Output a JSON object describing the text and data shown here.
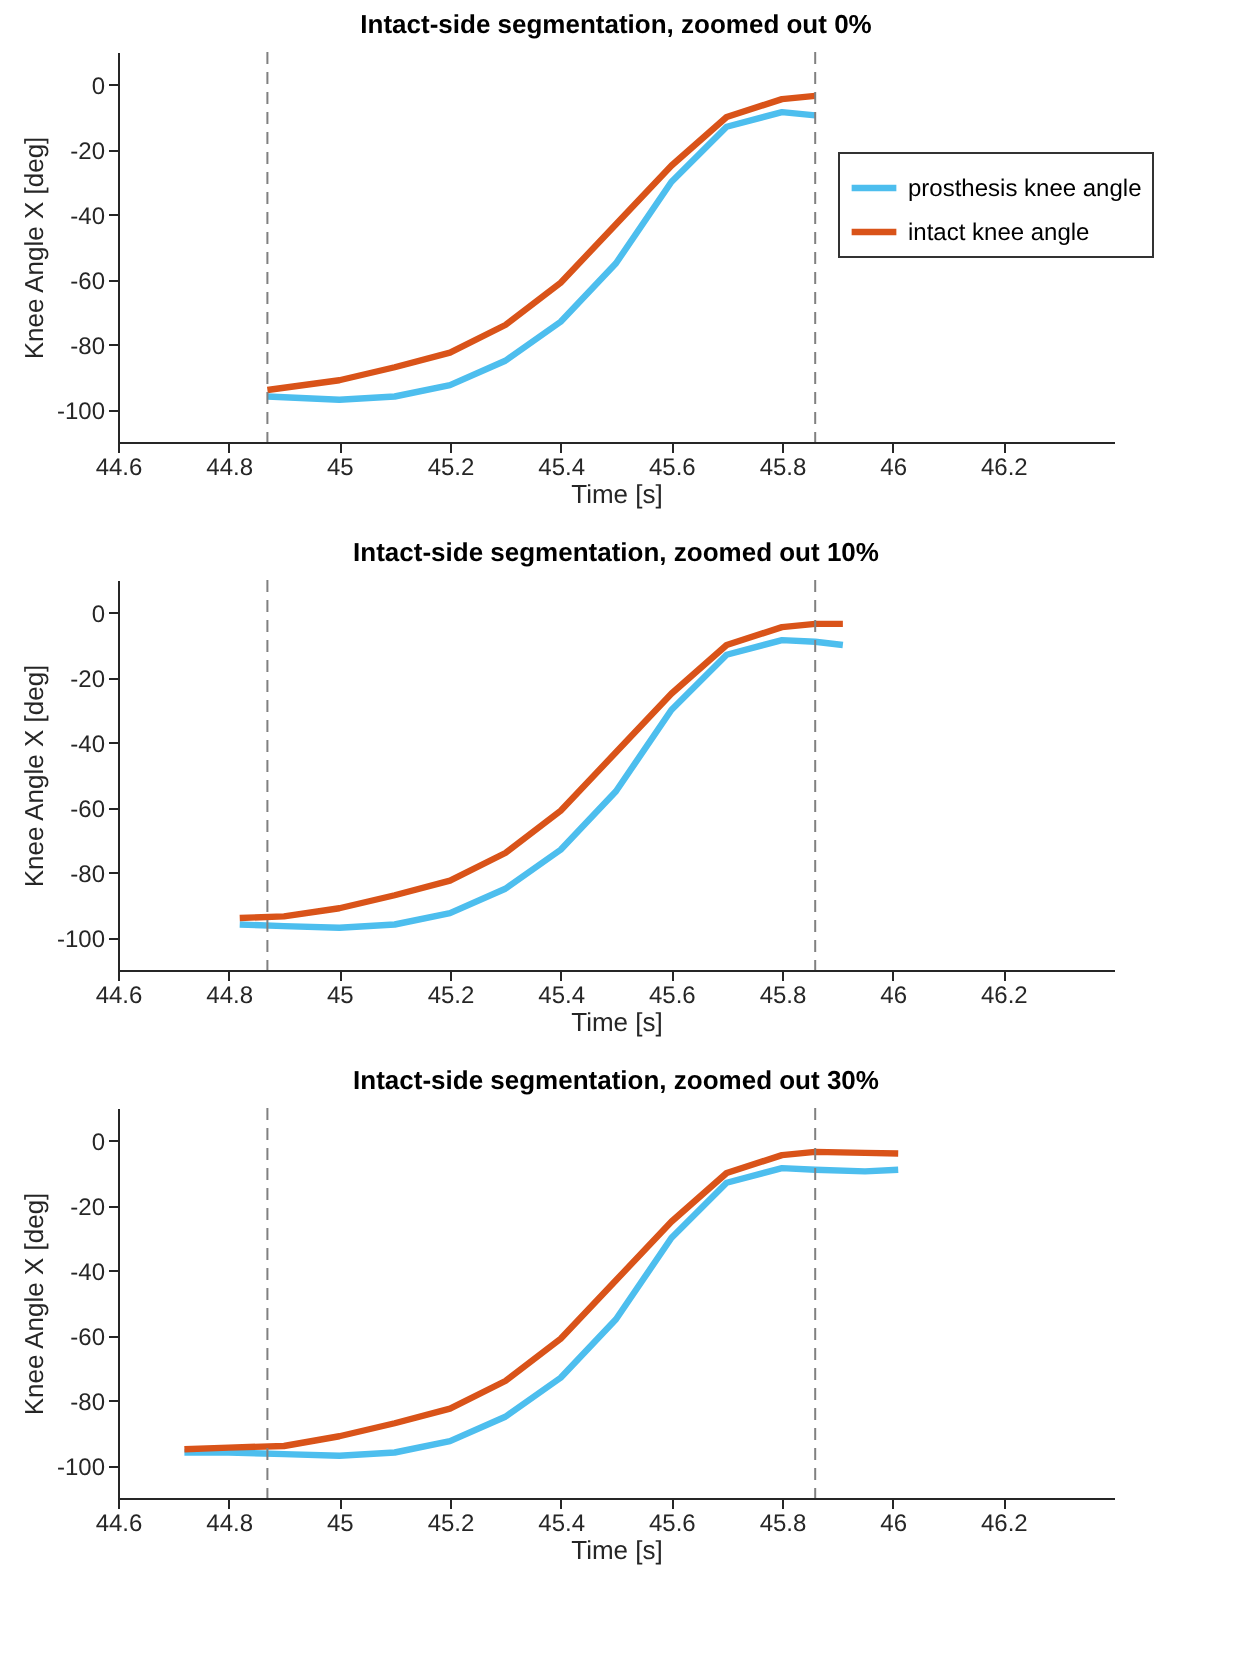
{
  "chart_data": [
    {
      "type": "line",
      "title": "Intact-side segmentation, zoomed out 0%",
      "xlabel": "Time  [s]",
      "ylabel": "Knee Angle X [deg]",
      "xlim": [
        44.6,
        46.4
      ],
      "xticks": [
        44.6,
        44.8,
        45,
        45.2,
        45.4,
        45.6,
        45.8,
        46,
        46.2
      ],
      "ylim": [
        -110,
        10
      ],
      "yticks": [
        -100,
        -80,
        -60,
        -40,
        -20,
        0
      ],
      "grid": false,
      "legend": "top right",
      "line_style": "solid",
      "ref_lines": [
        {
          "axis": "x",
          "value": 44.87,
          "color": "#808080",
          "line_style": "dashed"
        },
        {
          "axis": "x",
          "value": 45.86,
          "color": "#808080",
          "line_style": "dashed"
        }
      ],
      "series": [
        {
          "name": "prosthesis knee angle",
          "color": "#4dbeee",
          "x": [
            44.87,
            45.0,
            45.1,
            45.2,
            45.3,
            45.4,
            45.5,
            45.6,
            45.7,
            45.8,
            45.86
          ],
          "values": [
            -96,
            -97,
            -96,
            -92.5,
            -85,
            -73,
            -55,
            -30,
            -13,
            -8.5,
            -9.5
          ]
        },
        {
          "name": "intact knee angle",
          "color": "#d95319",
          "x": [
            44.87,
            45.0,
            45.1,
            45.2,
            45.3,
            45.4,
            45.5,
            45.6,
            45.7,
            45.8,
            45.86
          ],
          "values": [
            -94,
            -91,
            -87,
            -82.5,
            -74,
            -61,
            -43,
            -25,
            -10,
            -4.5,
            -3.5
          ]
        }
      ]
    },
    {
      "type": "line",
      "title": "Intact-side segmentation, zoomed out 10%",
      "xlabel": "Time  [s]",
      "ylabel": "Knee Angle X [deg]",
      "xlim": [
        44.6,
        46.4
      ],
      "xticks": [
        44.6,
        44.8,
        45,
        45.2,
        45.4,
        45.6,
        45.8,
        46,
        46.2
      ],
      "ylim": [
        -110,
        10
      ],
      "yticks": [
        -100,
        -80,
        -60,
        -40,
        -20,
        0
      ],
      "grid": false,
      "line_style": "solid",
      "ref_lines": [
        {
          "axis": "x",
          "value": 44.87,
          "color": "#808080",
          "line_style": "dashed"
        },
        {
          "axis": "x",
          "value": 45.86,
          "color": "#808080",
          "line_style": "dashed"
        }
      ],
      "series": [
        {
          "color": "#4dbeee",
          "x": [
            44.82,
            44.9,
            45.0,
            45.1,
            45.2,
            45.3,
            45.4,
            45.5,
            45.6,
            45.7,
            45.8,
            45.86,
            45.91
          ],
          "values": [
            -96,
            -96.5,
            -97,
            -96,
            -92.5,
            -85,
            -73,
            -55,
            -30,
            -13,
            -8.5,
            -9,
            -10
          ]
        },
        {
          "color": "#d95319",
          "x": [
            44.82,
            44.9,
            45.0,
            45.1,
            45.2,
            45.3,
            45.4,
            45.5,
            45.6,
            45.7,
            45.8,
            45.86,
            45.91
          ],
          "values": [
            -94,
            -93.5,
            -91,
            -87,
            -82.5,
            -74,
            -61,
            -43,
            -25,
            -10,
            -4.5,
            -3.5,
            -3.5
          ]
        }
      ]
    },
    {
      "type": "line",
      "title": "Intact-side segmentation, zoomed out 30%",
      "xlabel": "Time  [s]",
      "ylabel": "Knee Angle X [deg]",
      "xlim": [
        44.6,
        46.4
      ],
      "xticks": [
        44.6,
        44.8,
        45,
        45.2,
        45.4,
        45.6,
        45.8,
        46,
        46.2
      ],
      "ylim": [
        -110,
        10
      ],
      "yticks": [
        -100,
        -80,
        -60,
        -40,
        -20,
        0
      ],
      "grid": false,
      "line_style": "solid",
      "ref_lines": [
        {
          "axis": "x",
          "value": 44.87,
          "color": "#808080",
          "line_style": "dashed"
        },
        {
          "axis": "x",
          "value": 45.86,
          "color": "#808080",
          "line_style": "dashed"
        }
      ],
      "series": [
        {
          "color": "#4dbeee",
          "x": [
            44.72,
            44.8,
            44.9,
            45.0,
            45.1,
            45.2,
            45.3,
            45.4,
            45.5,
            45.6,
            45.7,
            45.8,
            45.86,
            45.95,
            46.01
          ],
          "values": [
            -96,
            -96,
            -96.5,
            -97,
            -96,
            -92.5,
            -85,
            -73,
            -55,
            -30,
            -13,
            -8.5,
            -9,
            -9.5,
            -9
          ]
        },
        {
          "color": "#d95319",
          "x": [
            44.72,
            44.8,
            44.9,
            45.0,
            45.1,
            45.2,
            45.3,
            45.4,
            45.5,
            45.6,
            45.7,
            45.8,
            45.86,
            45.95,
            46.01
          ],
          "values": [
            -95,
            -94.5,
            -94,
            -91,
            -87,
            -82.5,
            -74,
            -61,
            -43,
            -25,
            -10,
            -4.5,
            -3.5,
            -3.8,
            -4
          ]
        }
      ]
    }
  ]
}
